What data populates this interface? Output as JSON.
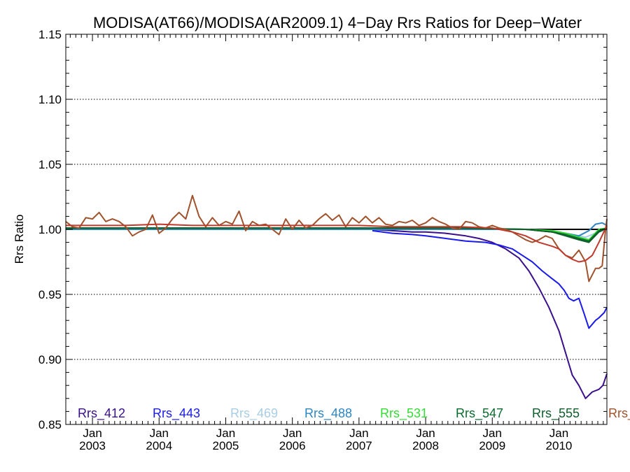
{
  "chart_data": {
    "type": "line",
    "title": "MODISA(AT66)/MODISA(AR2009.1) 4−Day Rrs Ratios for Deep−Water",
    "xlabel": "",
    "ylabel": "Rrs Ratio",
    "xlim": [
      2002.6,
      2010.72
    ],
    "ylim": [
      0.85,
      1.15
    ],
    "yticks": [
      "0.85",
      "0.90",
      "0.95",
      "1.00",
      "1.05",
      "1.10",
      "1.15"
    ],
    "ytick_values": [
      0.85,
      0.9,
      0.95,
      1.0,
      1.05,
      1.1,
      1.15
    ],
    "xticks": [
      {
        "month": "Jan",
        "year": "2003",
        "value": 2003.0
      },
      {
        "month": "Jan",
        "year": "2004",
        "value": 2004.0
      },
      {
        "month": "Jan",
        "year": "2005",
        "value": 2005.0
      },
      {
        "month": "Jan",
        "year": "2006",
        "value": 2006.0
      },
      {
        "month": "Jan",
        "year": "2007",
        "value": 2007.0
      },
      {
        "month": "Jan",
        "year": "2008",
        "value": 2008.0
      },
      {
        "month": "Jan",
        "year": "2009",
        "value": 2009.0
      },
      {
        "month": "Jan",
        "year": "2010",
        "value": 2010.0
      }
    ],
    "grid": "horizontal dotted",
    "reference_line": 1.0,
    "legend_placement": "bottom",
    "legend": [
      {
        "name": "Rrs_412",
        "color": "#3a0f8c"
      },
      {
        "name": "Rrs_443",
        "color": "#1a1aee"
      },
      {
        "name": "Rrs_469",
        "color": "#a9cde6"
      },
      {
        "name": "Rrs_488",
        "color": "#2e86c1"
      },
      {
        "name": "Rrs_531",
        "color": "#33dd33"
      },
      {
        "name": "Rrs_547",
        "color": "#0a6b2e"
      },
      {
        "name": "Rrs_555",
        "color": "#0d5e2a"
      },
      {
        "name": "Rrs_",
        "color": "#a0522d"
      }
    ],
    "series": [
      {
        "name": "Rrs_412",
        "color": "#3a0f8c",
        "x": [
          2007.2,
          2007.5,
          2007.8,
          2008.0,
          2008.3,
          2008.6,
          2008.8,
          2009.0,
          2009.2,
          2009.4,
          2009.55,
          2009.7,
          2009.85,
          2010.0,
          2010.1,
          2010.2,
          2010.3,
          2010.4,
          2010.5,
          2010.6,
          2010.66,
          2010.72
        ],
        "y": [
          1.0,
          0.999,
          0.998,
          0.998,
          0.997,
          0.995,
          0.993,
          0.99,
          0.985,
          0.978,
          0.968,
          0.955,
          0.94,
          0.922,
          0.905,
          0.888,
          0.88,
          0.87,
          0.875,
          0.877,
          0.88,
          0.889
        ]
      },
      {
        "name": "Rrs_443",
        "color": "#1a1aee",
        "x": [
          2007.2,
          2007.5,
          2007.8,
          2008.0,
          2008.3,
          2008.6,
          2008.9,
          2009.1,
          2009.3,
          2009.45,
          2009.6,
          2009.75,
          2009.9,
          2010.0,
          2010.08,
          2010.15,
          2010.22,
          2010.3,
          2010.38,
          2010.45,
          2010.55,
          2010.6,
          2010.68,
          2010.72
        ],
        "y": [
          0.999,
          0.997,
          0.996,
          0.995,
          0.993,
          0.991,
          0.99,
          0.988,
          0.985,
          0.98,
          0.975,
          0.968,
          0.962,
          0.958,
          0.953,
          0.947,
          0.945,
          0.947,
          0.935,
          0.924,
          0.93,
          0.932,
          0.936,
          0.94
        ]
      },
      {
        "name": "Rrs_469",
        "color": "#a9cde6",
        "x": [
          2002.6,
          2003.5,
          2004.5,
          2005.5,
          2006.5,
          2007.5,
          2008.5,
          2009.5,
          2009.9,
          2010.2,
          2010.4,
          2010.6,
          2010.72
        ],
        "y": [
          1.0,
          1.0,
          1.0,
          1.0,
          1.0,
          1.0,
          1.0,
          1.0,
          0.998,
          0.996,
          0.994,
          0.998,
          1.0
        ]
      },
      {
        "name": "Rrs_488",
        "color": "#2e86c1",
        "x": [
          2002.6,
          2003.5,
          2004.5,
          2005.5,
          2006.5,
          2007.5,
          2008.5,
          2009.5,
          2009.9,
          2010.1,
          2010.3,
          2010.45,
          2010.55,
          2010.65,
          2010.72
        ],
        "y": [
          1.0,
          1.0,
          1.0,
          1.0,
          1.0,
          1.0,
          1.0,
          1.0,
          0.999,
          0.997,
          0.995,
          0.999,
          1.004,
          1.005,
          1.003
        ]
      },
      {
        "name": "Rrs_531",
        "color": "#33dd33",
        "x": [
          2002.6,
          2003.5,
          2004.5,
          2005.5,
          2006.5,
          2007.5,
          2008.5,
          2009.5,
          2009.9,
          2010.1,
          2010.3,
          2010.45,
          2010.6,
          2010.72
        ],
        "y": [
          1.001,
          1.001,
          1.001,
          1.001,
          1.001,
          1.001,
          1.001,
          1.0,
          0.999,
          0.997,
          0.994,
          0.992,
          1.0,
          1.001
        ]
      },
      {
        "name": "Rrs_547",
        "color": "#0a6b2e",
        "x": [
          2002.6,
          2003.5,
          2004.5,
          2005.5,
          2006.5,
          2007.5,
          2008.5,
          2009.5,
          2009.9,
          2010.1,
          2010.3,
          2010.45,
          2010.6,
          2010.72
        ],
        "y": [
          1.001,
          1.001,
          1.001,
          1.001,
          1.001,
          1.001,
          1.001,
          1.0,
          0.998,
          0.996,
          0.993,
          0.991,
          0.999,
          1.001
        ]
      },
      {
        "name": "Rrs_555",
        "color": "#0d5e2a",
        "x": [
          2002.6,
          2003.5,
          2004.5,
          2005.5,
          2006.5,
          2007.5,
          2008.5,
          2009.5,
          2009.9,
          2010.1,
          2010.3,
          2010.45,
          2010.6,
          2010.72
        ],
        "y": [
          1.001,
          1.001,
          1.001,
          1.001,
          1.001,
          1.001,
          1.001,
          1.0,
          0.998,
          0.995,
          0.992,
          0.99,
          0.998,
          1.001
        ]
      },
      {
        "name": "Rrs_",
        "color": "#a0522d",
        "x": [
          2002.6,
          2002.7,
          2002.8,
          2002.9,
          2003.0,
          2003.1,
          2003.2,
          2003.3,
          2003.4,
          2003.5,
          2003.6,
          2003.7,
          2003.8,
          2003.9,
          2004.0,
          2004.1,
          2004.2,
          2004.3,
          2004.4,
          2004.5,
          2004.6,
          2004.7,
          2004.8,
          2004.9,
          2005.0,
          2005.1,
          2005.2,
          2005.3,
          2005.4,
          2005.5,
          2005.6,
          2005.7,
          2005.8,
          2005.9,
          2006.0,
          2006.1,
          2006.2,
          2006.3,
          2006.4,
          2006.5,
          2006.6,
          2006.7,
          2006.8,
          2006.9,
          2007.0,
          2007.1,
          2007.2,
          2007.3,
          2007.4,
          2007.5,
          2007.6,
          2007.7,
          2007.8,
          2007.9,
          2008.0,
          2008.1,
          2008.2,
          2008.3,
          2008.4,
          2008.5,
          2008.6,
          2008.7,
          2008.8,
          2008.9,
          2009.0,
          2009.1,
          2009.2,
          2009.3,
          2009.4,
          2009.5,
          2009.6,
          2009.7,
          2009.8,
          2009.9,
          2010.0,
          2010.1,
          2010.2,
          2010.3,
          2010.4,
          2010.45,
          2010.5,
          2010.55,
          2010.6,
          2010.65,
          2010.7,
          2010.72
        ],
        "y": [
          1.006,
          1.002,
          1.001,
          1.009,
          1.008,
          1.013,
          1.006,
          1.008,
          1.006,
          1.002,
          0.995,
          0.998,
          1.0,
          1.011,
          0.997,
          1.001,
          1.008,
          1.013,
          1.008,
          1.026,
          1.01,
          1.002,
          1.009,
          1.003,
          1.006,
          1.004,
          1.014,
          0.999,
          1.006,
          1.003,
          1.004,
          1.0,
          0.996,
          1.008,
          1.0,
          1.007,
          1.001,
          1.003,
          1.008,
          1.012,
          1.007,
          1.011,
          1.002,
          1.009,
          1.005,
          1.01,
          1.005,
          1.009,
          1.004,
          1.003,
          1.006,
          1.005,
          1.007,
          1.003,
          1.005,
          1.009,
          1.006,
          1.004,
          1.001,
          1.0,
          1.006,
          1.005,
          1.002,
          1.001,
          1.003,
          1.001,
          1.0,
          0.998,
          0.995,
          0.992,
          0.99,
          0.992,
          0.995,
          0.993,
          0.985,
          0.98,
          0.978,
          0.984,
          0.975,
          0.96,
          0.965,
          0.97,
          0.97,
          0.972,
          1.0,
          1.008
        ]
      },
      {
        "name": "Rrs_",
        "color": "#c0392b",
        "x": [
          2002.6,
          2003.0,
          2003.5,
          2004.0,
          2004.5,
          2005.0,
          2005.5,
          2006.0,
          2006.5,
          2007.0,
          2007.5,
          2008.0,
          2008.5,
          2009.0,
          2009.3,
          2009.5,
          2009.7,
          2009.9,
          2010.0,
          2010.1,
          2010.2,
          2010.3,
          2010.4,
          2010.5,
          2010.6,
          2010.72
        ],
        "y": [
          1.003,
          1.003,
          1.003,
          1.004,
          1.003,
          1.003,
          1.003,
          1.003,
          1.003,
          1.003,
          1.002,
          1.002,
          1.002,
          1.001,
          0.998,
          0.995,
          0.99,
          0.987,
          0.985,
          0.98,
          0.977,
          0.975,
          0.976,
          0.98,
          0.99,
          1.003
        ]
      }
    ]
  }
}
